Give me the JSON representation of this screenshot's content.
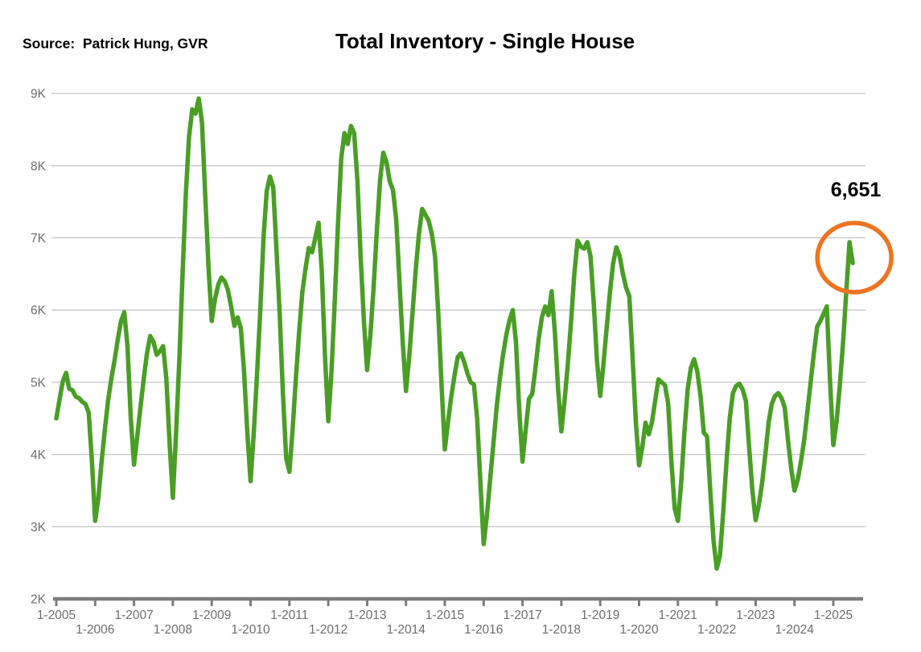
{
  "header": {
    "source": "Source:  Patrick Hung, GVR",
    "title": "Total Inventory - Single House"
  },
  "annotation": {
    "label": "6,651",
    "value": 6651
  },
  "colors": {
    "line": "#4a9e26",
    "highlight_circle": "#ed7420",
    "gridline": "#c6c6c6",
    "axis": "#7d7d7d",
    "tick_label": "#6e6e6e",
    "text": "#000000",
    "background": "#ffffff"
  },
  "chart_data": {
    "type": "line",
    "title": "Total Inventory - Single House",
    "source": "Patrick Hung, GVR",
    "grid": true,
    "legend": false,
    "x_unit": "month",
    "x_range": [
      "1-2005",
      "7-2025"
    ],
    "y_axis": {
      "min": 2000,
      "max": 9000,
      "tick_interval": 1000,
      "tick_labels": [
        "2K",
        "3K",
        "4K",
        "5K",
        "6K",
        "7K",
        "8K",
        "9K"
      ]
    },
    "x_tick_years": [
      2005,
      2006,
      2007,
      2008,
      2009,
      2010,
      2011,
      2012,
      2013,
      2014,
      2015,
      2016,
      2017,
      2018,
      2019,
      2020,
      2021,
      2022,
      2023,
      2024,
      2025
    ],
    "x_tick_labels_row1": [
      "1-2005",
      "1-2007",
      "1-2009",
      "1-2011",
      "1-2013",
      "1-2015",
      "1-2017",
      "1-2019",
      "1-2021",
      "1-2023",
      "1-2025"
    ],
    "x_tick_labels_row2": [
      "1-2006",
      "1-2008",
      "1-2010",
      "1-2012",
      "1-2014",
      "1-2016",
      "1-2018",
      "1-2020",
      "1-2022",
      "1-2024"
    ],
    "series": [
      {
        "name": "Total Inventory - Single House",
        "start_month": "1-2005",
        "values_by_year": [
          {
            "year": 2005,
            "monthly": [
              4500,
              4760,
              5010,
              5130,
              4910,
              4890,
              4800,
              4780,
              4730,
              4700,
              4580,
              3900
            ]
          },
          {
            "year": 2006,
            "monthly": [
              3080,
              3400,
              3900,
              4350,
              4750,
              5050,
              5300,
              5600,
              5850,
              5970,
              5500,
              4500
            ]
          },
          {
            "year": 2007,
            "monthly": [
              3860,
              4250,
              4650,
              5050,
              5400,
              5640,
              5560,
              5380,
              5430,
              5500,
              5050,
              4150
            ]
          },
          {
            "year": 2008,
            "monthly": [
              3400,
              4300,
              5300,
              6500,
              7600,
              8400,
              8780,
              8720,
              8930,
              8600,
              7600,
              6600
            ]
          },
          {
            "year": 2009,
            "monthly": [
              5850,
              6150,
              6350,
              6450,
              6400,
              6280,
              6050,
              5780,
              5900,
              5750,
              5150,
              4300
            ]
          },
          {
            "year": 2010,
            "monthly": [
              3630,
              4300,
              5100,
              6000,
              7000,
              7650,
              7850,
              7700,
              6840,
              5950,
              4850,
              3950
            ]
          },
          {
            "year": 2011,
            "monthly": [
              3760,
              4350,
              5050,
              5700,
              6250,
              6580,
              6860,
              6800,
              7000,
              7210,
              6550,
              5350
            ]
          },
          {
            "year": 2012,
            "monthly": [
              4460,
              5150,
              6100,
              7200,
              8100,
              8450,
              8300,
              8550,
              8450,
              7800,
              6750,
              5850
            ]
          },
          {
            "year": 2013,
            "monthly": [
              5170,
              5650,
              6300,
              7100,
              7800,
              8180,
              8050,
              7780,
              7660,
              7250,
              6400,
              5550
            ]
          },
          {
            "year": 2014,
            "monthly": [
              4880,
              5350,
              5950,
              6550,
              7050,
              7400,
              7320,
              7240,
              7050,
              6740,
              5950,
              4950
            ]
          },
          {
            "year": 2015,
            "monthly": [
              4070,
              4450,
              4800,
              5100,
              5350,
              5400,
              5280,
              5120,
              5000,
              4970,
              4500,
              3600
            ]
          },
          {
            "year": 2016,
            "monthly": [
              2760,
              3150,
              3650,
              4150,
              4650,
              5050,
              5380,
              5660,
              5860,
              6000,
              5550,
              4600
            ]
          },
          {
            "year": 2017,
            "monthly": [
              3900,
              4350,
              4770,
              4840,
              5200,
              5600,
              5900,
              6050,
              5930,
              6260,
              5700,
              4900
            ]
          },
          {
            "year": 2018,
            "monthly": [
              4320,
              4750,
              5250,
              5850,
              6500,
              6960,
              6880,
              6850,
              6940,
              6750,
              6100,
              5300
            ]
          },
          {
            "year": 2019,
            "monthly": [
              4810,
              5250,
              5750,
              6250,
              6650,
              6870,
              6750,
              6500,
              6310,
              6190,
              5350,
              4450
            ]
          },
          {
            "year": 2020,
            "monthly": [
              3850,
              4100,
              4440,
              4280,
              4450,
              4750,
              5040,
              5000,
              4960,
              4700,
              3900,
              3250
            ]
          },
          {
            "year": 2021,
            "monthly": [
              3080,
              3600,
              4300,
              4900,
              5200,
              5320,
              5150,
              4800,
              4300,
              4250,
              3500,
              2800
            ]
          },
          {
            "year": 2022,
            "monthly": [
              2420,
              2600,
              3200,
              3900,
              4500,
              4850,
              4950,
              4980,
              4900,
              4740,
              4100,
              3500
            ]
          },
          {
            "year": 2023,
            "monthly": [
              3090,
              3300,
              3600,
              4000,
              4440,
              4700,
              4810,
              4850,
              4780,
              4650,
              4200,
              3800
            ]
          },
          {
            "year": 2024,
            "monthly": [
              3500,
              3650,
              3900,
              4200,
              4600,
              5000,
              5400,
              5770,
              5850,
              5950,
              6050,
              5000
            ]
          },
          {
            "year": 2025,
            "monthly": [
              4130,
              4450,
              4950,
              5550,
              6250,
              6940,
              6651
            ]
          }
        ]
      }
    ],
    "last_point": {
      "month": "7-2025",
      "value": 6651,
      "annotated": true
    }
  }
}
